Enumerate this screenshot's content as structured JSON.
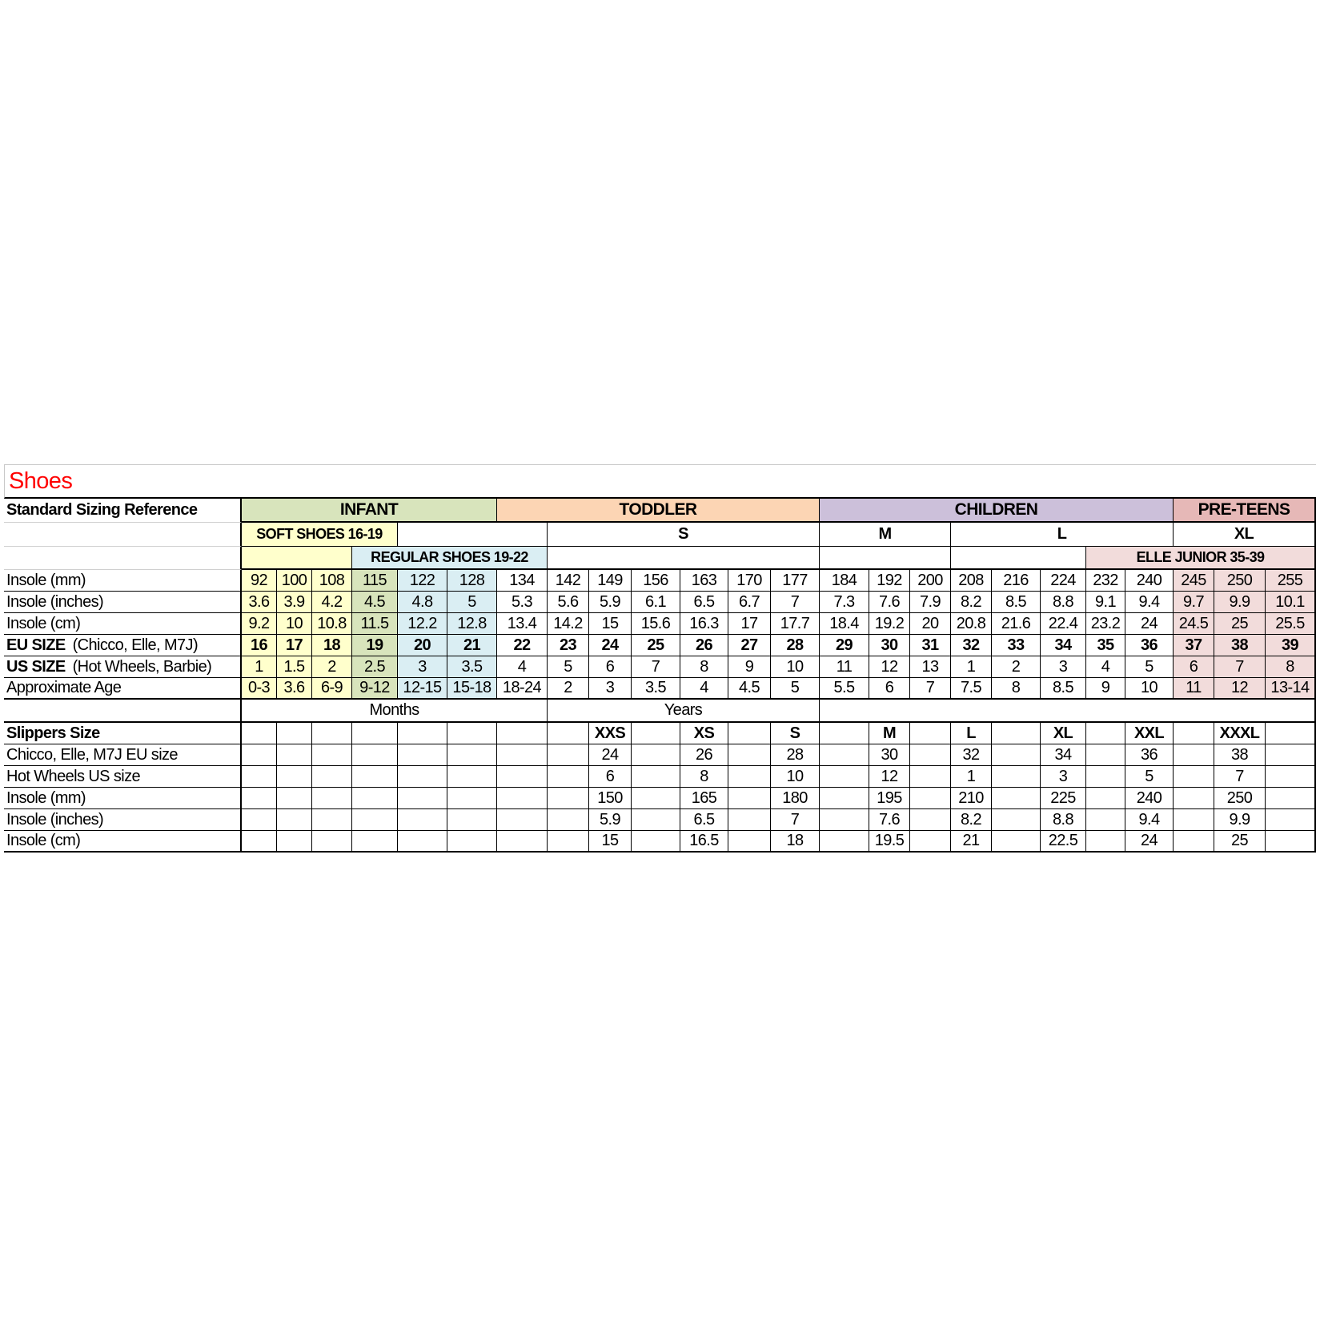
{
  "title": "Shoes",
  "colors": {
    "title": "#ff0000",
    "infant": "#d8e4bc",
    "toddler": "#fcd5b4",
    "children": "#ccc0da",
    "preteens": "#e6b8b7",
    "soft_shoes": "#ffffcc",
    "size_19_column": "#d8e4bc",
    "regular_shoes": "#daeef3",
    "elle_junior": "#f2dcdb"
  },
  "header": {
    "label": "Standard Sizing Reference",
    "groups": [
      "INFANT",
      "TODDLER",
      "CHILDREN",
      "PRE-TEENS"
    ],
    "sizes": [
      "S",
      "M",
      "L",
      "XL"
    ],
    "soft_shoes": "SOFT SHOES 16-19",
    "regular_shoes": "REGULAR SHOES 19-22",
    "elle_junior": "ELLE JUNIOR 35-39"
  },
  "rows": [
    {
      "label": "Insole (mm)",
      "values": [
        "92",
        "100",
        "108",
        "115",
        "122",
        "128",
        "134",
        "142",
        "149",
        "156",
        "163",
        "170",
        "177",
        "184",
        "192",
        "200",
        "208",
        "216",
        "224",
        "232",
        "240",
        "245",
        "250",
        "255"
      ]
    },
    {
      "label": "Insole (inches)",
      "values": [
        "3.6",
        "3.9",
        "4.2",
        "4.5",
        "4.8",
        "5",
        "5.3",
        "5.6",
        "5.9",
        "6.1",
        "6.5",
        "6.7",
        "7",
        "7.3",
        "7.6",
        "7.9",
        "8.2",
        "8.5",
        "8.8",
        "9.1",
        "9.4",
        "9.7",
        "9.9",
        "10.1"
      ]
    },
    {
      "label": "Insole (cm)",
      "values": [
        "9.2",
        "10",
        "10.8",
        "11.5",
        "12.2",
        "12.8",
        "13.4",
        "14.2",
        "15",
        "15.6",
        "16.3",
        "17",
        "17.7",
        "18.4",
        "19.2",
        "20",
        "20.8",
        "21.6",
        "22.4",
        "23.2",
        "24",
        "24.5",
        "25",
        "25.5"
      ]
    },
    {
      "label_bold": "EU SIZE",
      "label": "(Chicco, Elle, M7J)",
      "bold": true,
      "values": [
        "16",
        "17",
        "18",
        "19",
        "20",
        "21",
        "22",
        "23",
        "24",
        "25",
        "26",
        "27",
        "28",
        "29",
        "30",
        "31",
        "32",
        "33",
        "34",
        "35",
        "36",
        "37",
        "38",
        "39"
      ]
    },
    {
      "label_bold": "US SIZE",
      "label": "(Hot Wheels, Barbie)",
      "values": [
        "1",
        "1.5",
        "2",
        "2.5",
        "3",
        "3.5",
        "4",
        "5",
        "6",
        "7",
        "8",
        "9",
        "10",
        "11",
        "12",
        "13",
        "1",
        "2",
        "3",
        "4",
        "5",
        "6",
        "7",
        "8"
      ]
    },
    {
      "label": "Approximate Age",
      "values": [
        "0-3",
        "3.6",
        "6-9",
        "9-12",
        "12-15",
        "15-18",
        "18-24",
        "2",
        "3",
        "3.5",
        "4",
        "4.5",
        "5",
        "5.5",
        "6",
        "7",
        "7.5",
        "8",
        "8.5",
        "9",
        "10",
        "11",
        "12",
        "13-14"
      ]
    }
  ],
  "age_units": [
    "Months",
    "Years"
  ],
  "slippers": {
    "label": "Slippers Size",
    "sizes": [
      "XXS",
      "XS",
      "S",
      "M",
      "L",
      "XL",
      "XXL",
      "XXXL"
    ],
    "rows": [
      {
        "label": "Chicco, Elle, M7J EU size",
        "values": [
          "24",
          "26",
          "28",
          "30",
          "32",
          "34",
          "36",
          "38"
        ]
      },
      {
        "label": "Hot Wheels US size",
        "values": [
          "6",
          "8",
          "10",
          "12",
          "1",
          "3",
          "5",
          "7"
        ]
      },
      {
        "label": "Insole (mm)",
        "values": [
          "150",
          "165",
          "180",
          "195",
          "210",
          "225",
          "240",
          "250"
        ]
      },
      {
        "label": "Insole (inches)",
        "values": [
          "5.9",
          "6.5",
          "7",
          "7.6",
          "8.2",
          "8.8",
          "9.4",
          "9.9"
        ]
      },
      {
        "label": "Insole (cm)",
        "values": [
          "15",
          "16.5",
          "18",
          "19.5",
          "21",
          "22.5",
          "24",
          "25"
        ]
      }
    ]
  }
}
